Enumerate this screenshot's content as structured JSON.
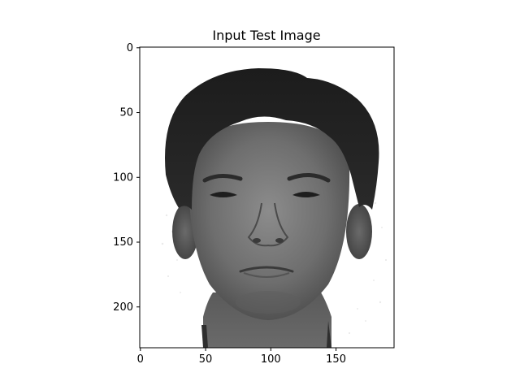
{
  "figure": {
    "title": "Input Test Image",
    "image_description": "grayscale face photograph",
    "background_color": "#ffffff",
    "axis_color": "#000000"
  },
  "chart_data": {
    "type": "image",
    "title": "Input Test Image",
    "xlabel": "",
    "ylabel": "",
    "xlim": [
      -0.5,
      194.5
    ],
    "ylim": [
      231.5,
      -0.5
    ],
    "x_ticks": [
      0,
      50,
      100,
      150
    ],
    "y_ticks": [
      0,
      50,
      100,
      150,
      200
    ],
    "grid": false,
    "legend": "none"
  }
}
